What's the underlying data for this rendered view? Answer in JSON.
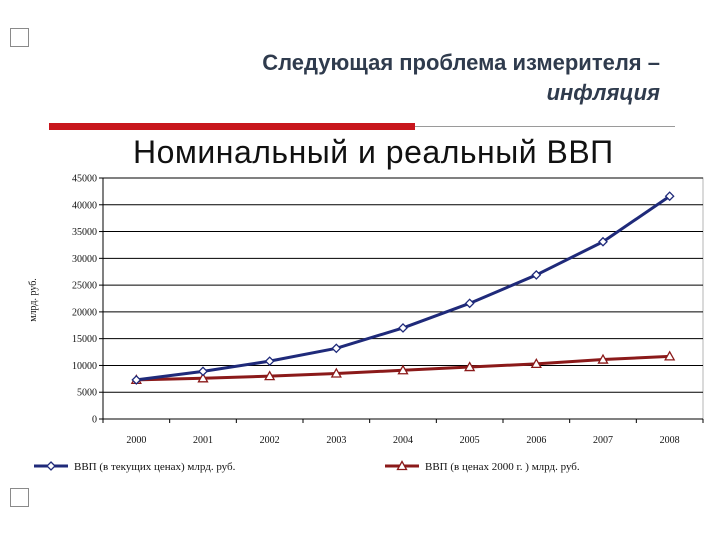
{
  "header": {
    "line1": "Следующая проблема измерителя –",
    "line2": "инфляция"
  },
  "colors": {
    "accent": "#c8161d",
    "series_nominal": "#1f2a7a",
    "series_real": "#8b1a1a"
  },
  "chart_data": {
    "type": "line",
    "title": "Номинальный и реальный ВВП",
    "ylabel": "млрд. руб.",
    "xlabel": "",
    "categories": [
      "2000",
      "2001",
      "2002",
      "2003",
      "2004",
      "2005",
      "2006",
      "2007",
      "2008"
    ],
    "ylim": [
      0,
      45000
    ],
    "yticks": [
      0,
      5000,
      10000,
      15000,
      20000,
      25000,
      30000,
      35000,
      40000,
      45000
    ],
    "grid": true,
    "legend": "bottom",
    "series": [
      {
        "name": "ВВП (в текущих ценах) млрд. руб.",
        "marker": "diamond",
        "values": [
          7300,
          8900,
          10800,
          13200,
          17000,
          21600,
          26900,
          33100,
          41600
        ]
      },
      {
        "name": "ВВП (в ценах 2000 г. ) млрд. руб.",
        "marker": "triangle",
        "values": [
          7300,
          7600,
          8000,
          8500,
          9100,
          9700,
          10300,
          11100,
          11700
        ]
      }
    ]
  }
}
